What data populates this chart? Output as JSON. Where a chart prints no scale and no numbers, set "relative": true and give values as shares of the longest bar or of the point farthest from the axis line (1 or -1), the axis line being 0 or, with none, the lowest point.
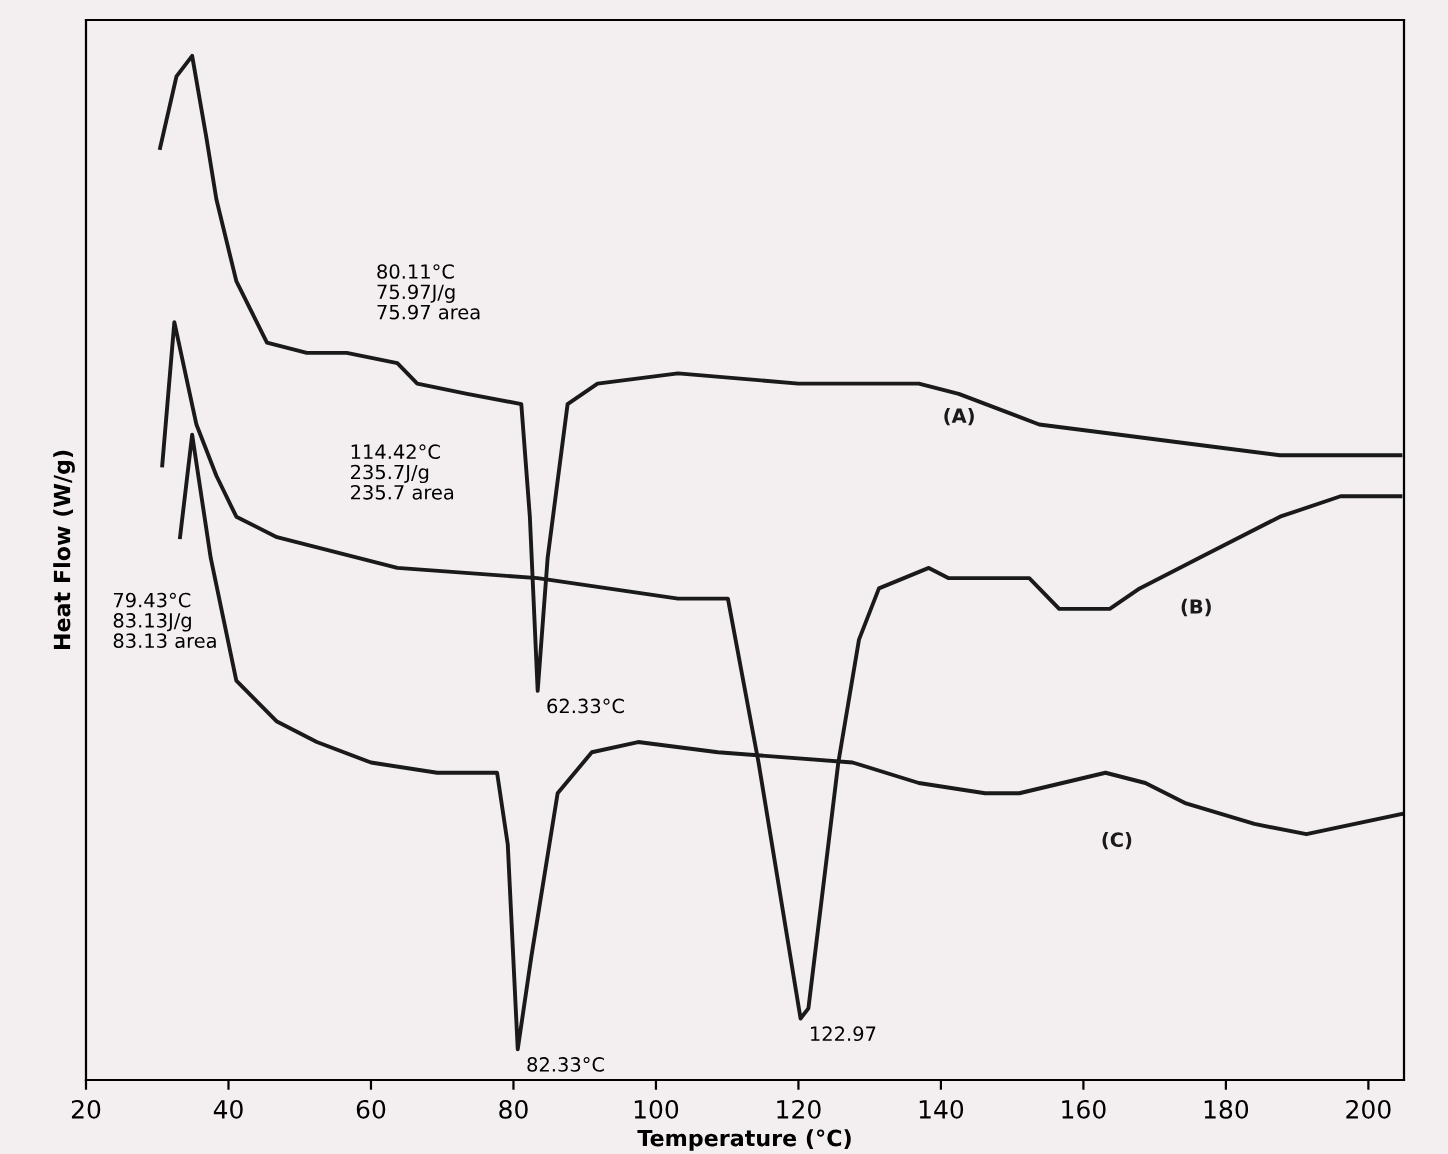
{
  "chart_data": {
    "type": "line",
    "relative": true,
    "xlabel": "Temperature (°C)",
    "ylabel": "Heat Flow (W/g)",
    "xlim": [
      20,
      205
    ],
    "xticks": [
      20,
      40,
      60,
      80,
      100,
      120,
      140,
      160,
      180,
      200
    ],
    "tick_labels": "x",
    "grid": false,
    "marker": "none",
    "line_style": "solid",
    "series": [
      {
        "name": "(A)",
        "color": "#1a1a1a",
        "x": [
          30.4,
          32.7,
          34.9,
          36.9,
          38.3,
          41.1,
          45.4,
          51.0,
          56.6,
          63.7,
          66.5,
          73.5,
          81.1,
          82.3,
          83.4,
          84.8,
          87.6,
          91.8,
          103.1,
          120.0,
          136.9,
          142.5,
          153.8,
          165.1,
          176.3,
          187.6,
          196.1,
          204.5
        ],
        "values": [
          0.91,
          0.98,
          1.0,
          0.92,
          0.86,
          0.78,
          0.72,
          0.71,
          0.71,
          0.7,
          0.68,
          0.67,
          0.66,
          0.55,
          0.38,
          0.51,
          0.66,
          0.68,
          0.69,
          0.68,
          0.68,
          0.67,
          0.64,
          0.63,
          0.62,
          0.61,
          0.61,
          0.61
        ]
      },
      {
        "name": "(B)",
        "color": "#1a1a1a",
        "x": [
          30.7,
          32.4,
          35.5,
          38.3,
          41.1,
          46.8,
          63.7,
          83.4,
          103.1,
          110.1,
          114.4,
          120.3,
          121.4,
          125.6,
          128.5,
          131.3,
          138.3,
          141.1,
          152.4,
          156.6,
          163.7,
          167.9,
          176.3,
          187.6,
          196.1,
          204.5
        ],
        "values": [
          0.6,
          0.74,
          0.64,
          0.59,
          0.55,
          0.53,
          0.5,
          0.49,
          0.47,
          0.47,
          0.31,
          0.06,
          0.07,
          0.31,
          0.43,
          0.48,
          0.5,
          0.49,
          0.49,
          0.46,
          0.46,
          0.48,
          0.51,
          0.55,
          0.57,
          0.57
        ]
      },
      {
        "name": "(C)",
        "color": "#1a1a1a",
        "x": [
          33.2,
          34.9,
          37.5,
          41.1,
          46.8,
          52.4,
          60.0,
          69.3,
          77.7,
          79.2,
          80.6,
          82.5,
          86.2,
          91.0,
          97.5,
          108.7,
          127.6,
          136.9,
          146.2,
          151.0,
          163.1,
          168.7,
          174.4,
          184.0,
          191.3,
          204.9
        ],
        "values": [
          0.53,
          0.63,
          0.51,
          0.39,
          0.35,
          0.33,
          0.31,
          0.3,
          0.3,
          0.23,
          0.03,
          0.12,
          0.28,
          0.32,
          0.33,
          0.32,
          0.31,
          0.29,
          0.28,
          0.28,
          0.3,
          0.29,
          0.27,
          0.25,
          0.24,
          0.26
        ]
      }
    ],
    "annotations": [
      "80.11°C\n75.97J/g\n75.97 area",
      "114.42°C\n235.7J/g\n235.7 area",
      "79.43°C\n83.13J/g\n83.13 area",
      {
        "text": "62.33°C",
        "x": 83.4,
        "y": 0.38
      },
      {
        "text": "82.33°C",
        "x": 80.6,
        "y": 0.03
      },
      {
        "text": "122.97",
        "x": 120.3,
        "y": 0.06
      }
    ]
  }
}
